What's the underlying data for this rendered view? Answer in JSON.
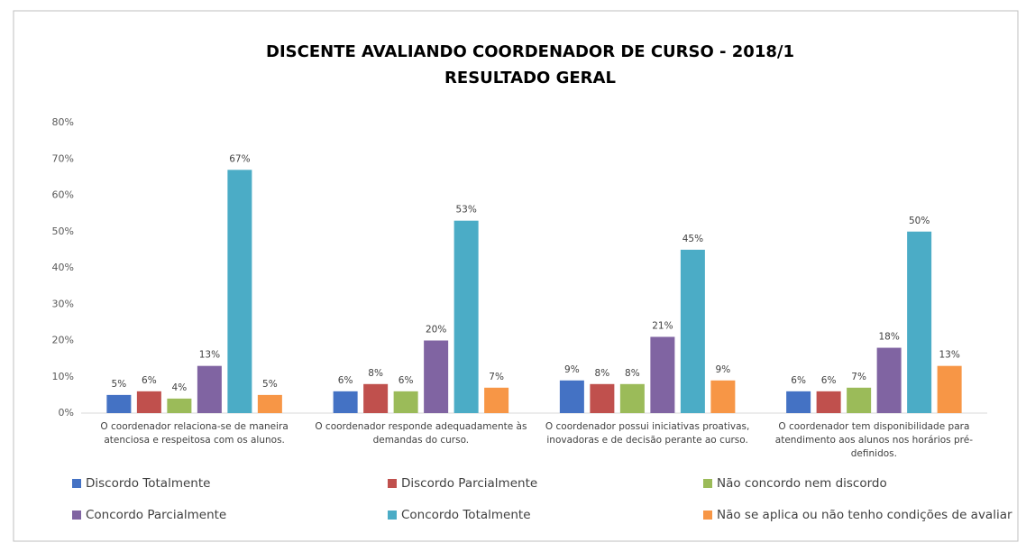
{
  "chart_data": {
    "type": "bar",
    "title": "DISCENTE AVALIANDO COORDENADOR  DE CURSO - 2018/1",
    "subtitle": "RESULTADO GERAL",
    "categories": [
      "O coordenador relaciona-se de maneira atenciosa e respeitosa com os alunos.",
      "O coordenador responde adequadamente às demandas do curso.",
      "O coordenador possui iniciativas proativas, inovadoras e de decisão perante ao curso.",
      "O coordenador tem disponibilidade para atendimento aos alunos nos horários pré-definidos."
    ],
    "series": [
      {
        "name": "Discordo Totalmente",
        "color": "#4472c4",
        "values": [
          5,
          6,
          9,
          6
        ],
        "value_labels": [
          "5%",
          "6%",
          "9%",
          "6%"
        ]
      },
      {
        "name": "Discordo Parcialmente",
        "color": "#c0504d",
        "values": [
          6,
          8,
          8,
          6
        ],
        "value_labels": [
          "6%",
          "8%",
          "8%",
          "6%"
        ]
      },
      {
        "name": "Não concordo nem discordo",
        "color": "#9bbb59",
        "values": [
          4,
          6,
          8,
          7
        ],
        "value_labels": [
          "4%",
          "6%",
          "8%",
          "7%"
        ]
      },
      {
        "name": "Concordo Parcialmente",
        "color": "#8064a2",
        "values": [
          13,
          20,
          21,
          18
        ],
        "value_labels": [
          "13%",
          "20%",
          "21%",
          "18%"
        ]
      },
      {
        "name": "Concordo Totalmente",
        "color": "#4bacc6",
        "values": [
          67,
          53,
          45,
          50
        ],
        "value_labels": [
          "67%",
          "53%",
          "45%",
          "50%"
        ]
      },
      {
        "name": "Não se aplica ou não tenho condições de avaliar",
        "color": "#f79646",
        "values": [
          5,
          7,
          9,
          13
        ],
        "value_labels": [
          "5%",
          "7%",
          "9%",
          "13%"
        ]
      }
    ],
    "ylim": [
      0,
      80
    ],
    "yticks": [
      {
        "value": 0,
        "label": "0%"
      },
      {
        "value": 10,
        "label": "10%"
      },
      {
        "value": 20,
        "label": "20%"
      },
      {
        "value": 30,
        "label": "30%"
      },
      {
        "value": 40,
        "label": "40%"
      },
      {
        "value": 50,
        "label": "50%"
      },
      {
        "value": 60,
        "label": "60%"
      },
      {
        "value": 70,
        "label": "70%"
      },
      {
        "value": 80,
        "label": "80%"
      }
    ],
    "grid": false,
    "legend": "bottom"
  }
}
